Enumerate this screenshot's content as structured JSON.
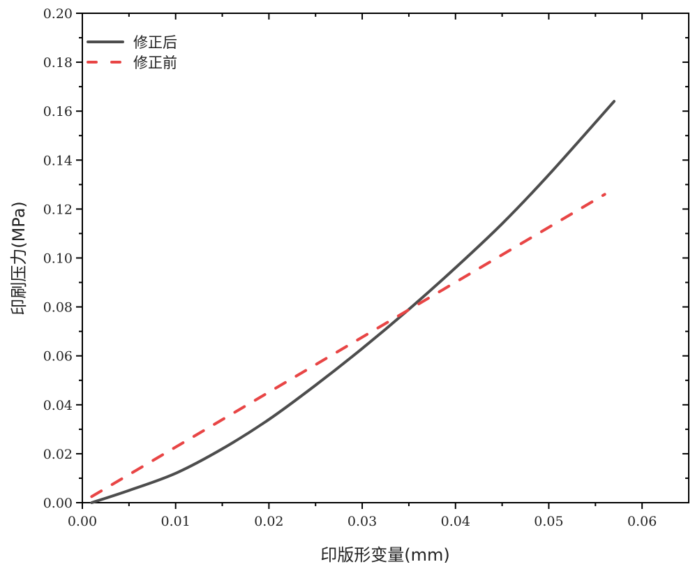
{
  "chart_data": {
    "type": "line",
    "title": "",
    "xlabel": "印版形变量(mm)",
    "ylabel": "印刷压力(MPa)",
    "xlim": [
      0,
      0.065
    ],
    "ylim": [
      0,
      0.2
    ],
    "xticks": [
      "0.00",
      "0.01",
      "0.02",
      "0.03",
      "0.04",
      "0.05",
      "0.06"
    ],
    "yticks": [
      "0.00",
      "0.02",
      "0.04",
      "0.06",
      "0.08",
      "0.10",
      "0.12",
      "0.14",
      "0.16",
      "0.18",
      "0.20"
    ],
    "grid": false,
    "legend_position": "top-left",
    "series": [
      {
        "name": "修正后",
        "color": "#4d4d4d",
        "style": "solid",
        "x": [
          0.001,
          0.005,
          0.01,
          0.015,
          0.02,
          0.025,
          0.03,
          0.035,
          0.04,
          0.045,
          0.05,
          0.057
        ],
        "y": [
          0.0,
          0.005,
          0.012,
          0.022,
          0.034,
          0.048,
          0.063,
          0.079,
          0.096,
          0.114,
          0.134,
          0.164
        ]
      },
      {
        "name": "修正前",
        "color": "#e84545",
        "style": "dashed",
        "x": [
          0.001,
          0.056
        ],
        "y": [
          0.0025,
          0.126
        ]
      }
    ]
  }
}
